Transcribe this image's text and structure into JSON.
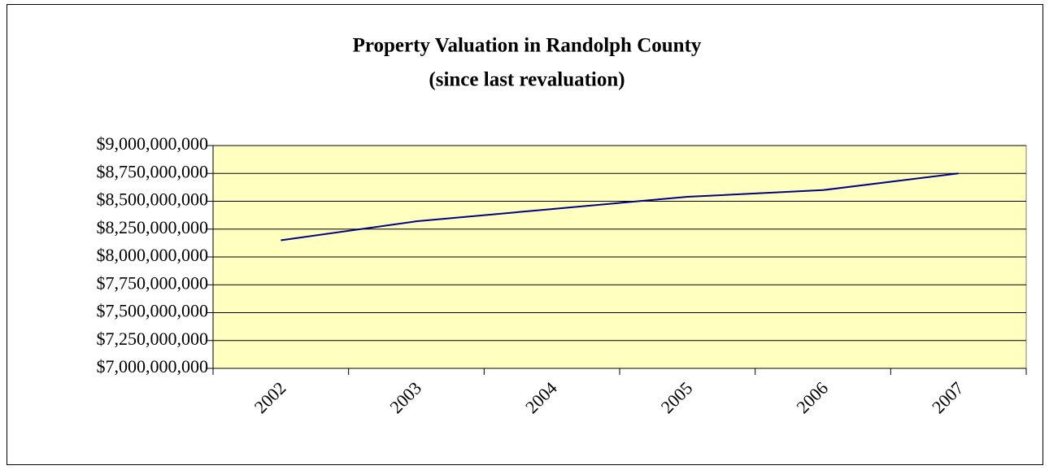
{
  "chart_data": {
    "type": "line",
    "title": "Property Valuation in Randolph County",
    "subtitle": "(since last revaluation)",
    "categories": [
      "2002",
      "2003",
      "2004",
      "2005",
      "2006",
      "2007"
    ],
    "series": [
      {
        "name": "Property Valuation",
        "color": "#000080",
        "values": [
          8150000000,
          8320000000,
          8430000000,
          8540000000,
          8600000000,
          8750000000
        ]
      }
    ],
    "ylim": [
      7000000000,
      9000000000
    ],
    "yticks": [
      {
        "value": 7000000000,
        "label": "$7,000,000,000"
      },
      {
        "value": 7250000000,
        "label": "$7,250,000,000"
      },
      {
        "value": 7500000000,
        "label": "$7,500,000,000"
      },
      {
        "value": 7750000000,
        "label": "$7,750,000,000"
      },
      {
        "value": 8000000000,
        "label": "$8,000,000,000"
      },
      {
        "value": 8250000000,
        "label": "$8,250,000,000"
      },
      {
        "value": 8500000000,
        "label": "$8,500,000,000"
      },
      {
        "value": 8750000000,
        "label": "$8,750,000,000"
      },
      {
        "value": 9000000000,
        "label": "$9,000,000,000"
      }
    ],
    "grid": true,
    "plot_background": "#ffffc0"
  }
}
